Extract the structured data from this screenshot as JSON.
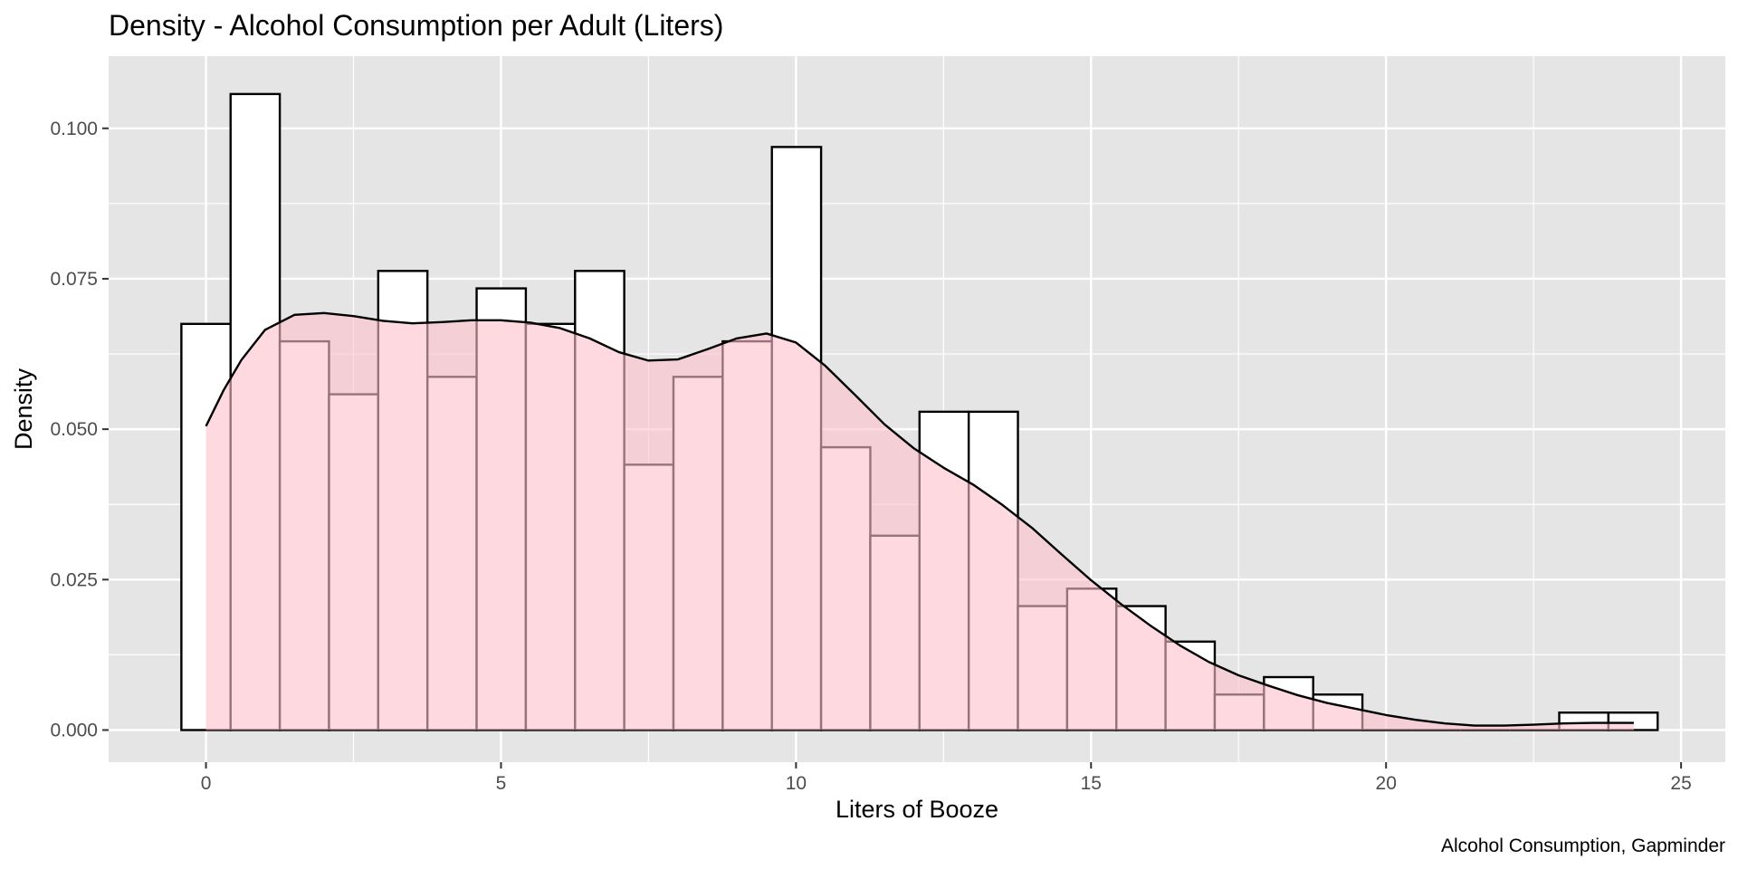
{
  "chart_data": {
    "type": "bar",
    "title": "Density - Alcohol Consumption per Adult (Liters)",
    "xlabel": "Liters of Booze",
    "ylabel": "Density",
    "caption": "Alcohol Consumption, Gapminder",
    "xlim": [
      -1.65,
      25.75
    ],
    "ylim": [
      -0.00534,
      0.112
    ],
    "x_ticks": [
      {
        "value": 0,
        "label": "0"
      },
      {
        "value": 5,
        "label": "5"
      },
      {
        "value": 10,
        "label": "10"
      },
      {
        "value": 15,
        "label": "15"
      },
      {
        "value": 20,
        "label": "20"
      },
      {
        "value": 25,
        "label": "25"
      }
    ],
    "y_ticks": [
      {
        "value": 0.0,
        "label": "0.000"
      },
      {
        "value": 0.025,
        "label": "0.025"
      },
      {
        "value": 0.05,
        "label": "0.050"
      },
      {
        "value": 0.075,
        "label": "0.075"
      },
      {
        "value": 0.1,
        "label": "0.100"
      }
    ],
    "grid": true,
    "colors": {
      "panel_background": "#e5e5e5",
      "grid_line": "#ffffff",
      "bar_fill": "#ffffff",
      "bar_outline": "#000000",
      "density_fill": "#ffc0cb",
      "density_fill_opacity": 0.6,
      "density_line": "#000000"
    },
    "series": [
      {
        "kind": "histogram",
        "bin_width": 0.834,
        "bins": [
          {
            "x0": -0.417,
            "x1": 0.417,
            "density": 0.0675
          },
          {
            "x0": 0.417,
            "x1": 1.251,
            "density": 0.1057
          },
          {
            "x0": 1.251,
            "x1": 2.085,
            "density": 0.0646
          },
          {
            "x0": 2.085,
            "x1": 2.919,
            "density": 0.0558
          },
          {
            "x0": 2.919,
            "x1": 3.753,
            "density": 0.0763
          },
          {
            "x0": 3.753,
            "x1": 4.587,
            "density": 0.0587
          },
          {
            "x0": 4.587,
            "x1": 5.421,
            "density": 0.0734
          },
          {
            "x0": 5.421,
            "x1": 6.255,
            "density": 0.0675
          },
          {
            "x0": 6.255,
            "x1": 7.089,
            "density": 0.0763
          },
          {
            "x0": 7.089,
            "x1": 7.923,
            "density": 0.0441
          },
          {
            "x0": 7.923,
            "x1": 8.757,
            "density": 0.0587
          },
          {
            "x0": 8.757,
            "x1": 9.591,
            "density": 0.0646
          },
          {
            "x0": 9.591,
            "x1": 10.425,
            "density": 0.0969
          },
          {
            "x0": 10.425,
            "x1": 11.259,
            "density": 0.047
          },
          {
            "x0": 11.259,
            "x1": 12.093,
            "density": 0.0323
          },
          {
            "x0": 12.093,
            "x1": 12.927,
            "density": 0.0529
          },
          {
            "x0": 12.927,
            "x1": 13.761,
            "density": 0.0529
          },
          {
            "x0": 13.761,
            "x1": 14.595,
            "density": 0.0206
          },
          {
            "x0": 14.595,
            "x1": 15.429,
            "density": 0.0235
          },
          {
            "x0": 15.429,
            "x1": 16.263,
            "density": 0.0206
          },
          {
            "x0": 16.263,
            "x1": 17.097,
            "density": 0.0147
          },
          {
            "x0": 17.097,
            "x1": 17.931,
            "density": 0.0059
          },
          {
            "x0": 17.931,
            "x1": 18.765,
            "density": 0.0088
          },
          {
            "x0": 18.765,
            "x1": 19.599,
            "density": 0.0059
          },
          {
            "x0": 19.599,
            "x1": 20.433,
            "density": 0.0
          },
          {
            "x0": 20.433,
            "x1": 21.267,
            "density": 0.0
          },
          {
            "x0": 21.267,
            "x1": 22.101,
            "density": 0.0
          },
          {
            "x0": 22.101,
            "x1": 22.935,
            "density": 0.0
          },
          {
            "x0": 22.935,
            "x1": 23.769,
            "density": 0.0029
          },
          {
            "x0": 23.769,
            "x1": 24.603,
            "density": 0.0029
          }
        ]
      },
      {
        "kind": "density",
        "points": [
          [
            0.0,
            0.0505
          ],
          [
            0.3,
            0.0565
          ],
          [
            0.6,
            0.0615
          ],
          [
            1.0,
            0.0665
          ],
          [
            1.5,
            0.069
          ],
          [
            2.0,
            0.0693
          ],
          [
            2.5,
            0.0688
          ],
          [
            3.0,
            0.068
          ],
          [
            3.5,
            0.0676
          ],
          [
            4.0,
            0.0678
          ],
          [
            4.5,
            0.0681
          ],
          [
            5.0,
            0.0681
          ],
          [
            5.5,
            0.0677
          ],
          [
            6.0,
            0.0668
          ],
          [
            6.5,
            0.0651
          ],
          [
            7.0,
            0.0628
          ],
          [
            7.5,
            0.0614
          ],
          [
            8.0,
            0.0616
          ],
          [
            8.5,
            0.0633
          ],
          [
            9.0,
            0.0651
          ],
          [
            9.5,
            0.0659
          ],
          [
            10.0,
            0.0644
          ],
          [
            10.5,
            0.0605
          ],
          [
            11.0,
            0.0557
          ],
          [
            11.5,
            0.0508
          ],
          [
            12.0,
            0.0468
          ],
          [
            12.5,
            0.0436
          ],
          [
            13.0,
            0.0408
          ],
          [
            13.5,
            0.0374
          ],
          [
            14.0,
            0.0336
          ],
          [
            14.5,
            0.0292
          ],
          [
            15.0,
            0.0249
          ],
          [
            15.5,
            0.021
          ],
          [
            16.0,
            0.0174
          ],
          [
            16.5,
            0.0141
          ],
          [
            17.0,
            0.0113
          ],
          [
            17.5,
            0.0091
          ],
          [
            18.0,
            0.0074
          ],
          [
            18.5,
            0.0058
          ],
          [
            19.0,
            0.0045
          ],
          [
            19.5,
            0.0035
          ],
          [
            20.0,
            0.0025
          ],
          [
            20.5,
            0.0017
          ],
          [
            21.0,
            0.0011
          ],
          [
            21.5,
            0.00075
          ],
          [
            22.0,
            0.00075
          ],
          [
            22.5,
            0.0009
          ],
          [
            23.0,
            0.0011
          ],
          [
            23.5,
            0.0012
          ],
          [
            24.0,
            0.0012
          ],
          [
            24.2,
            0.0012
          ]
        ]
      }
    ]
  }
}
